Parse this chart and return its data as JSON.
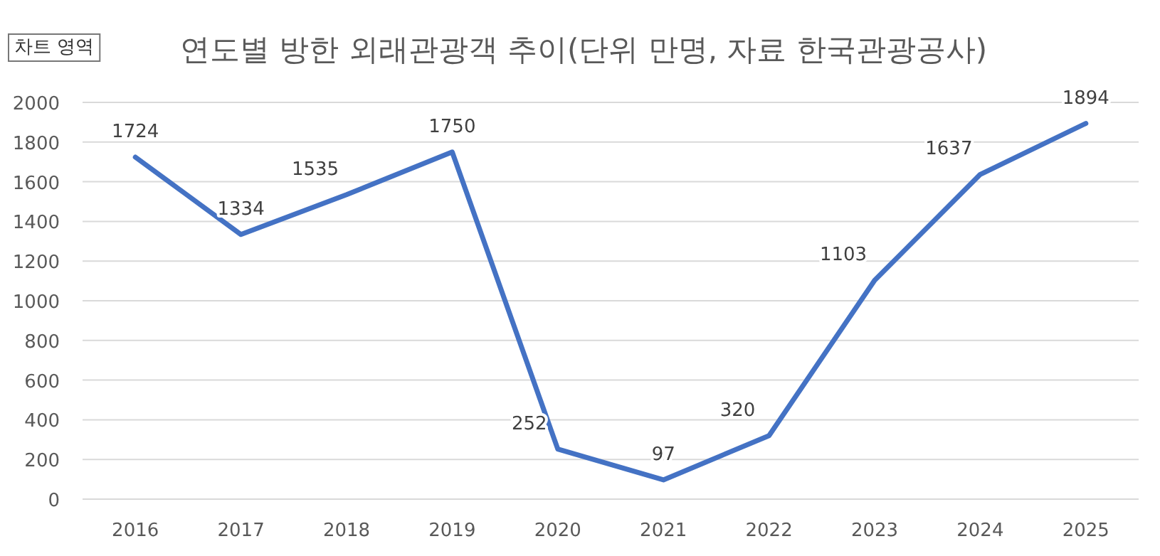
{
  "chart_data": {
    "type": "line",
    "title": "연도별 방한 외래관광객 추이(단위 만명, 자료 한국관광공사)",
    "annotations": [
      "차트 영역"
    ],
    "categories": [
      "2016",
      "2017",
      "2018",
      "2019",
      "2020",
      "2021",
      "2022",
      "2023",
      "2024",
      "2025"
    ],
    "series": [
      {
        "color": "#4472c4",
        "values": [
          1724,
          1334,
          1535,
          1750,
          252,
          97,
          320,
          1103,
          1637,
          1894
        ]
      }
    ],
    "ylim": [
      0,
      2000
    ],
    "yticks": [
      0,
      200,
      400,
      600,
      800,
      1000,
      1200,
      1400,
      1600,
      1800,
      2000
    ],
    "grid": "y",
    "marker": "none",
    "line_style": "solid",
    "data_labels": true
  }
}
